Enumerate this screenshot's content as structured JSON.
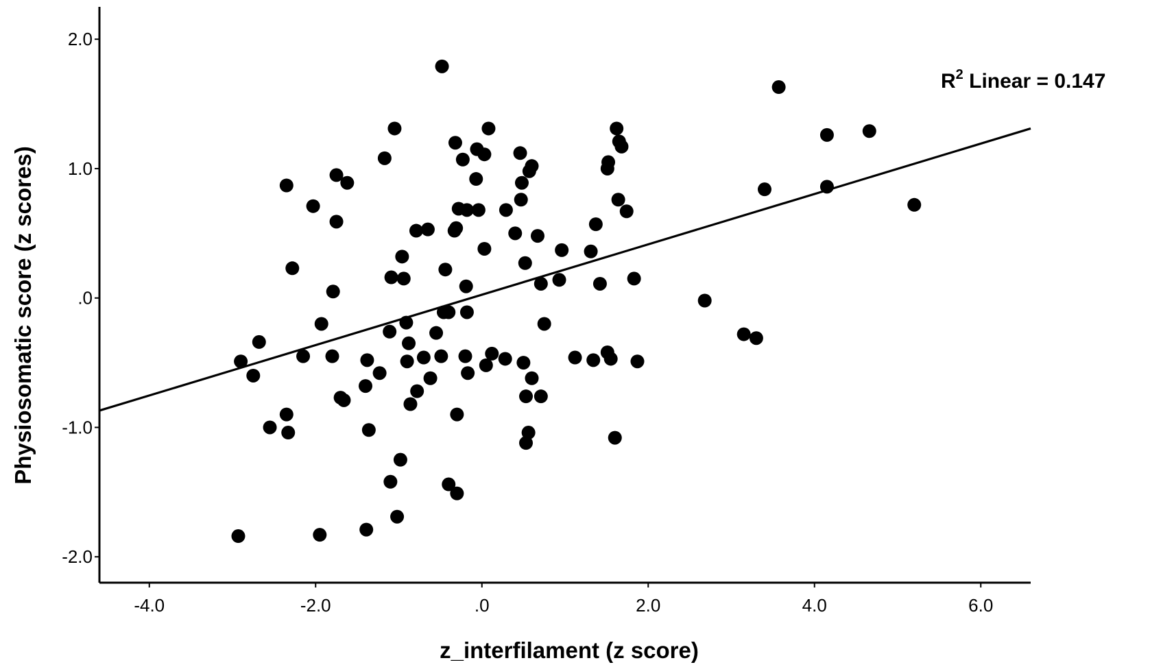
{
  "chart_data": {
    "type": "scatter",
    "xlabel": "z_interfilament (z score)",
    "ylabel": "Physiosomatic score (z scores)",
    "xlim": [
      -4.6,
      6.6
    ],
    "ylim": [
      -2.2,
      2.25
    ],
    "x_ticks": [
      -4,
      -2,
      0,
      2,
      4,
      6
    ],
    "x_tick_labels": [
      "-4.0",
      "-2.0",
      ".0",
      "2.0",
      "4.0",
      "6.0"
    ],
    "y_ticks": [
      -2,
      -1,
      0,
      1,
      2
    ],
    "y_tick_labels": [
      "-2.0",
      "-1.0",
      ".0",
      "1.0",
      "2.0"
    ],
    "grid": false,
    "fit_line": {
      "label": "R² Linear = 0.147",
      "label_main": "R",
      "label_sup": "2",
      "label_rest": " Linear = 0.147",
      "x": [
        -4.6,
        6.6
      ],
      "y": [
        -0.87,
        1.31
      ]
    },
    "points": [
      [
        -0.48,
        1.79
      ],
      [
        -1.05,
        1.31
      ],
      [
        0.08,
        1.31
      ],
      [
        -0.32,
        1.2
      ],
      [
        -0.06,
        1.15
      ],
      [
        -1.17,
        1.08
      ],
      [
        -0.23,
        1.07
      ],
      [
        0.03,
        1.11
      ],
      [
        0.46,
        1.12
      ],
      [
        0.6,
        1.02
      ],
      [
        0.48,
        0.89
      ],
      [
        0.57,
        0.98
      ],
      [
        -0.07,
        0.92
      ],
      [
        -1.75,
        0.95
      ],
      [
        -1.62,
        0.89
      ],
      [
        -2.35,
        0.87
      ],
      [
        -2.03,
        0.71
      ],
      [
        -1.75,
        0.59
      ],
      [
        -0.28,
        0.69
      ],
      [
        -0.18,
        0.68
      ],
      [
        -0.04,
        0.68
      ],
      [
        0.29,
        0.68
      ],
      [
        0.47,
        0.76
      ],
      [
        -0.79,
        0.52
      ],
      [
        -0.65,
        0.53
      ],
      [
        -0.33,
        0.52
      ],
      [
        -0.31,
        0.54
      ],
      [
        0.4,
        0.5
      ],
      [
        0.67,
        0.48
      ],
      [
        -0.96,
        0.32
      ],
      [
        0.03,
        0.38
      ],
      [
        0.52,
        0.27
      ],
      [
        0.96,
        0.37
      ],
      [
        -2.28,
        0.23
      ],
      [
        -1.09,
        0.16
      ],
      [
        -0.94,
        0.15
      ],
      [
        -0.44,
        0.22
      ],
      [
        -0.19,
        0.09
      ],
      [
        0.71,
        0.11
      ],
      [
        0.93,
        0.14
      ],
      [
        -1.79,
        0.05
      ],
      [
        -1.93,
        -0.2
      ],
      [
        -0.91,
        -0.19
      ],
      [
        -1.11,
        -0.26
      ],
      [
        -0.46,
        -0.11
      ],
      [
        -0.4,
        -0.11
      ],
      [
        -0.18,
        -0.11
      ],
      [
        0.75,
        -0.2
      ],
      [
        -0.88,
        -0.35
      ],
      [
        -0.55,
        -0.27
      ],
      [
        -2.68,
        -0.34
      ],
      [
        -2.9,
        -0.49
      ],
      [
        -2.75,
        -0.6
      ],
      [
        -2.15,
        -0.45
      ],
      [
        -1.8,
        -0.45
      ],
      [
        -1.38,
        -0.48
      ],
      [
        -0.9,
        -0.49
      ],
      [
        -0.7,
        -0.46
      ],
      [
        -0.49,
        -0.45
      ],
      [
        -0.2,
        -0.45
      ],
      [
        0.12,
        -0.43
      ],
      [
        0.28,
        -0.47
      ],
      [
        0.05,
        -0.52
      ],
      [
        -1.23,
        -0.58
      ],
      [
        -0.17,
        -0.58
      ],
      [
        -0.62,
        -0.62
      ],
      [
        -1.4,
        -0.68
      ],
      [
        -0.78,
        -0.72
      ],
      [
        -1.7,
        -0.77
      ],
      [
        -1.66,
        -0.79
      ],
      [
        -0.86,
        -0.82
      ],
      [
        0.5,
        -0.5
      ],
      [
        1.12,
        -0.46
      ],
      [
        1.34,
        -0.48
      ],
      [
        1.51,
        -0.42
      ],
      [
        1.55,
        -0.47
      ],
      [
        1.87,
        -0.49
      ],
      [
        0.6,
        -0.62
      ],
      [
        0.53,
        -0.76
      ],
      [
        0.71,
        -0.76
      ],
      [
        -2.35,
        -0.9
      ],
      [
        -0.3,
        -0.9
      ],
      [
        -2.55,
        -1.0
      ],
      [
        -2.33,
        -1.04
      ],
      [
        -1.36,
        -1.02
      ],
      [
        0.56,
        -1.04
      ],
      [
        0.53,
        -1.12
      ],
      [
        1.6,
        -1.08
      ],
      [
        -0.98,
        -1.25
      ],
      [
        -1.1,
        -1.42
      ],
      [
        -0.4,
        -1.44
      ],
      [
        -0.3,
        -1.51
      ],
      [
        -1.02,
        -1.69
      ],
      [
        -1.39,
        -1.79
      ],
      [
        -1.95,
        -1.83
      ],
      [
        -2.93,
        -1.84
      ],
      [
        1.37,
        0.57
      ],
      [
        1.31,
        0.36
      ],
      [
        1.42,
        0.11
      ],
      [
        1.52,
        1.05
      ],
      [
        1.51,
        1.0
      ],
      [
        1.62,
        1.31
      ],
      [
        1.65,
        1.21
      ],
      [
        1.68,
        1.17
      ],
      [
        1.64,
        0.76
      ],
      [
        1.74,
        0.67
      ],
      [
        1.83,
        0.15
      ],
      [
        2.68,
        -0.02
      ],
      [
        3.15,
        -0.28
      ],
      [
        3.3,
        -0.31
      ],
      [
        3.4,
        0.84
      ],
      [
        3.57,
        1.63
      ],
      [
        4.15,
        1.26
      ],
      [
        4.15,
        0.86
      ],
      [
        4.66,
        1.29
      ],
      [
        5.2,
        0.72
      ]
    ]
  }
}
